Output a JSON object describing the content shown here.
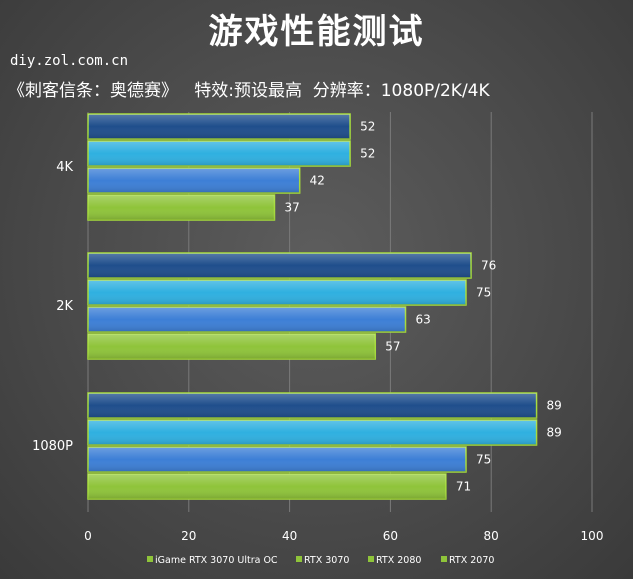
{
  "header": {
    "title": "游戏性能测试",
    "site": "diy.zol.com.cn",
    "subtitle": "《刺客信条：奥德赛》   特效:预设最高  分辨率：1080P/2K/4K"
  },
  "chart_data": {
    "type": "bar",
    "orientation": "horizontal",
    "categories": [
      "4K",
      "2K",
      "1080P"
    ],
    "series": [
      {
        "name": "iGame RTX 3070 Ultra OC",
        "values": [
          52,
          76,
          89
        ],
        "color": "#1f4e8c"
      },
      {
        "name": "RTX 3070",
        "values": [
          52,
          75,
          89
        ],
        "color": "#2fb0e0"
      },
      {
        "name": "RTX 2080",
        "values": [
          42,
          63,
          75
        ],
        "color": "#3d7fd6"
      },
      {
        "name": "RTX 2070",
        "values": [
          37,
          57,
          71
        ],
        "color": "#8fc43a"
      }
    ],
    "x_ticks": [
      "0",
      "20",
      "40",
      "60",
      "80",
      "100"
    ],
    "xlim": [
      0,
      100
    ],
    "grid": true,
    "legend_position": "bottom",
    "legend_marker_color": "#8fc43a"
  }
}
